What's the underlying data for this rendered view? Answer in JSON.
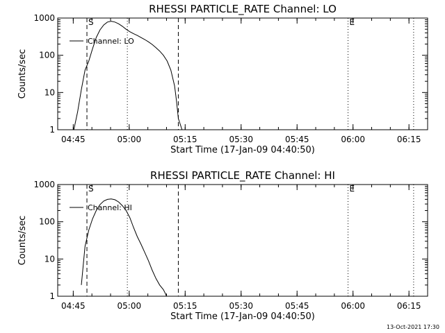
{
  "chart_data": [
    {
      "type": "line",
      "title": "RHESSI PARTICLE_RATE Channel: LO",
      "xlabel": "Start Time (17-Jan-09 04:40:50)",
      "ylabel": "Counts/sec",
      "yscale": "log",
      "ylim": [
        1,
        1000
      ],
      "xlim": [
        "04:40:50",
        "06:20:00"
      ],
      "xticks": [
        "04:45",
        "05:00",
        "05:15",
        "05:30",
        "05:45",
        "06:00",
        "06:15"
      ],
      "yticks": [
        "1",
        "10",
        "100",
        "1000"
      ],
      "legend": {
        "label": "Channel: LO",
        "placement": "top-left"
      },
      "markers": [
        {
          "time": "04:48:40",
          "style": "dashed",
          "label": "S"
        },
        {
          "time": "04:59:30",
          "style": "dotted",
          "label": ""
        },
        {
          "time": "05:13:10",
          "style": "dashed",
          "label": ""
        },
        {
          "time": "05:58:40",
          "style": "dotted",
          "label": "E"
        },
        {
          "time": "06:16:15",
          "style": "dotted",
          "label": ""
        }
      ],
      "series": [
        {
          "name": "Channel: LO",
          "x": [
            "04:45:10",
            "04:46:10",
            "04:47:10",
            "04:48:10",
            "04:49:10",
            "04:50:10",
            "04:51:10",
            "04:52:10",
            "04:53:10",
            "04:54:10",
            "04:55:10",
            "04:56:10",
            "04:57:10",
            "04:58:10",
            "04:59:10",
            "05:00:10",
            "05:01:10",
            "05:02:10",
            "05:03:10",
            "05:04:10",
            "05:05:10",
            "05:06:10",
            "05:07:10",
            "05:08:10",
            "05:09:10",
            "05:10:10",
            "05:11:10",
            "05:12:10",
            "05:12:40",
            "05:13:10",
            "05:13:30",
            "05:14:10"
          ],
          "y": [
            1,
            3,
            12,
            40,
            70,
            150,
            300,
            480,
            650,
            780,
            820,
            780,
            700,
            600,
            500,
            430,
            380,
            340,
            300,
            265,
            230,
            195,
            160,
            130,
            100,
            70,
            40,
            15,
            6,
            2,
            1.6,
            1
          ]
        }
      ]
    },
    {
      "type": "line",
      "title": "RHESSI PARTICLE_RATE Channel: HI",
      "xlabel": "Start Time (17-Jan-09 04:40:50)",
      "ylabel": "Counts/sec",
      "yscale": "log",
      "ylim": [
        1,
        1000
      ],
      "xlim": [
        "04:40:50",
        "06:20:00"
      ],
      "xticks": [
        "04:45",
        "05:00",
        "05:15",
        "05:30",
        "05:45",
        "06:00",
        "06:15"
      ],
      "yticks": [
        "1",
        "10",
        "100",
        "1000"
      ],
      "legend": {
        "label": "Channel: HI",
        "placement": "top-left"
      },
      "markers": [
        {
          "time": "04:48:40",
          "style": "dashed",
          "label": "S"
        },
        {
          "time": "04:59:30",
          "style": "dotted",
          "label": ""
        },
        {
          "time": "05:13:10",
          "style": "dashed",
          "label": ""
        },
        {
          "time": "05:58:40",
          "style": "dotted",
          "label": "E"
        },
        {
          "time": "06:16:15",
          "style": "dotted",
          "label": ""
        }
      ],
      "series": [
        {
          "name": "Channel: HI",
          "x": [
            "04:47:10",
            "04:48:10",
            "04:49:10",
            "04:50:10",
            "04:51:10",
            "04:52:10",
            "04:53:10",
            "04:54:10",
            "04:55:10",
            "04:56:10",
            "04:57:10",
            "04:58:10",
            "04:59:10",
            "05:00:10",
            "05:01:10",
            "05:02:10",
            "05:03:10",
            "05:04:10",
            "05:05:10",
            "05:06:10",
            "05:07:10",
            "05:08:10",
            "05:09:10",
            "05:09:40",
            "05:10:00"
          ],
          "y": [
            2,
            22,
            60,
            120,
            200,
            290,
            360,
            400,
            410,
            390,
            340,
            270,
            200,
            130,
            70,
            40,
            25,
            15,
            9,
            5,
            3,
            2,
            1.5,
            1.2,
            1
          ]
        }
      ]
    }
  ],
  "footer": {
    "timestamp": "13-Oct-2021 17:30"
  }
}
